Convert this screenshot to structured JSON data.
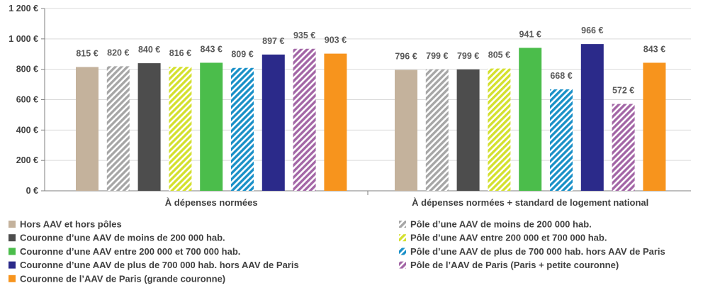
{
  "chart_data": {
    "type": "bar",
    "title": "",
    "xlabel": "",
    "ylabel": "",
    "ylim": [
      0,
      1200
    ],
    "yticks": [
      "0 €",
      "200 €",
      "400 €",
      "600 €",
      "800 €",
      "1 000 €",
      "1 200 €"
    ],
    "grid": true,
    "legend_position": "bottom",
    "categories": [
      "À dépenses normées",
      "À dépenses normées + standard de logement national"
    ],
    "series": [
      {
        "name": "Hors AAV et hors pôles",
        "color": "#c4b29c",
        "pattern": "solid",
        "values": [
          815,
          796
        ],
        "labels": [
          "815 €",
          "796 €"
        ]
      },
      {
        "name": "Pôle d’une AAV de moins de 200 000 hab.",
        "color": "#a6a6a6",
        "pattern": "hatch",
        "values": [
          820,
          799
        ],
        "labels": [
          "820 €",
          "799 €"
        ]
      },
      {
        "name": "Couronne d’une AAV de moins de 200 000 hab.",
        "color": "#4d4d4d",
        "pattern": "solid",
        "values": [
          840,
          799
        ],
        "labels": [
          "840 €",
          "799 €"
        ]
      },
      {
        "name": "Pôle d’une AAV entre 200 000 et 700 000 hab.",
        "color": "#d4e02e",
        "pattern": "hatch",
        "values": [
          816,
          805
        ],
        "labels": [
          "816 €",
          "805 €"
        ]
      },
      {
        "name": "Couronne d’une AAV entre 200 000 et 700 000 hab.",
        "color": "#4bbd4b",
        "pattern": "solid",
        "values": [
          843,
          941
        ],
        "labels": [
          "843 €",
          "941 €"
        ]
      },
      {
        "name": "Pôle d’une AAV de plus de 700 000 hab. hors AAV de Paris",
        "color": "#1a90c8",
        "pattern": "hatch",
        "values": [
          809,
          668
        ],
        "labels": [
          "809 €",
          "668 €"
        ]
      },
      {
        "name": "Couronne d’une AAV de plus de 700 000 hab. hors AAV de Paris",
        "color": "#2b2a8a",
        "pattern": "solid",
        "values": [
          897,
          966
        ],
        "labels": [
          "897 €",
          "966 €"
        ]
      },
      {
        "name": "Pôle de l’AAV de Paris (Paris + petite couronne)",
        "color": "#a366a6",
        "pattern": "hatch",
        "values": [
          935,
          572
        ],
        "labels": [
          "935 €",
          "572 €"
        ]
      },
      {
        "name": "Couronne de l’AAV de Paris (grande couronne)",
        "color": "#f7941d",
        "pattern": "solid",
        "values": [
          903,
          843
        ],
        "labels": [
          "903 €",
          "843 €"
        ]
      }
    ]
  }
}
